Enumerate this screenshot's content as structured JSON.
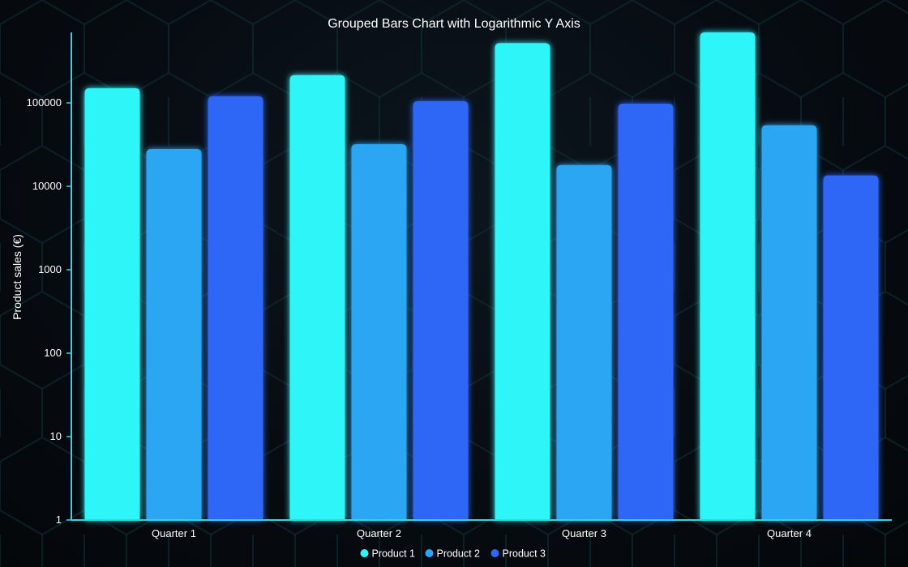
{
  "chart_data": {
    "type": "bar",
    "title": "Grouped Bars Chart with Logarithmic Y Axis",
    "ylabel": "Product sales (€)",
    "xlabel": "",
    "y_scale": "log",
    "ylim": [
      1,
      700000
    ],
    "y_ticks": [
      1,
      10,
      100,
      1000,
      10000,
      100000
    ],
    "y_tick_labels": [
      "1",
      "10",
      "100",
      "1000",
      "10000",
      "100000"
    ],
    "categories": [
      "Quarter 1",
      "Quarter 2",
      "Quarter 3",
      "Quarter 4"
    ],
    "series": [
      {
        "name": "Product 1",
        "color": "#2ef5f8",
        "values": [
          150000,
          215000,
          520000,
          700000
        ]
      },
      {
        "name": "Product 2",
        "color": "#2ca6f2",
        "values": [
          28000,
          32000,
          18000,
          54000
        ]
      },
      {
        "name": "Product 3",
        "color": "#2e66f5",
        "values": [
          120000,
          105000,
          98000,
          13500
        ]
      }
    ],
    "legend_position": "bottom-center",
    "grid": false
  },
  "colors": {
    "axis": "#2fd8e0",
    "background": "#06090d",
    "hex_pattern": "#0f2a30"
  }
}
